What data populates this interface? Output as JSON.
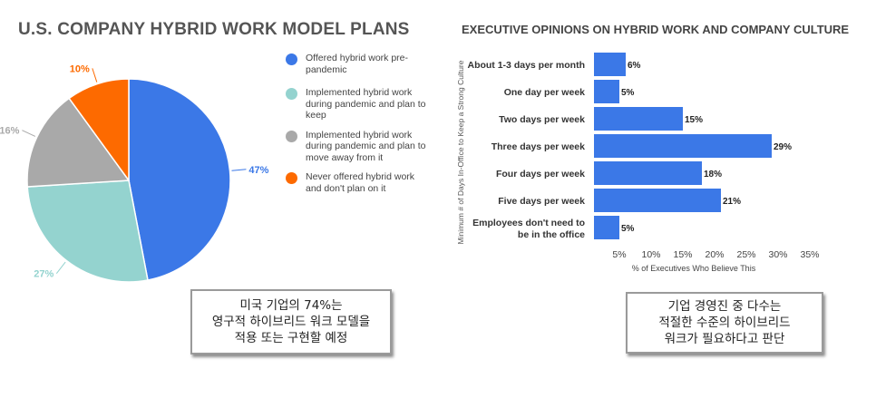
{
  "pie_title": "U.S. COMPANY HYBRID WORK MODEL PLANS",
  "bar_title": "EXECUTIVE OPINIONS ON HYBRID WORK AND COMPANY CULTURE",
  "caption_left": "미국 기업의 74%는\n영구적 하이브리드 워크 모델을\n적용 또는 구현할 예정",
  "caption_right": "기업 경영진 중 다수는\n적절한 수준의 하이브리드\n워크가 필요하다고 판단",
  "chart_data": [
    {
      "type": "pie",
      "title": "U.S. COMPANY HYBRID WORK MODEL PLANS",
      "slices": [
        {
          "label": "Offered hybrid work pre-pandemic",
          "value": 47,
          "display": "47%",
          "color": "#3b78e7"
        },
        {
          "label": "Implemented hybrid work during pandemic and plan to keep",
          "value": 27,
          "display": "27%",
          "color": "#94d3cf"
        },
        {
          "label": "Implemented hybrid work during pandemic and plan to move away from it",
          "value": 16,
          "display": "16%",
          "color": "#a9a9a9"
        },
        {
          "label": "Never offered hybrid work and don't plan on it",
          "value": 10,
          "display": "10%",
          "color": "#fd6a00"
        }
      ],
      "legend_position": "right"
    },
    {
      "type": "bar",
      "orientation": "horizontal",
      "title": "EXECUTIVE OPINIONS ON HYBRID WORK AND COMPANY CULTURE",
      "categories": [
        "About 1-3 days per month",
        "One day per week",
        "Two days per week",
        "Three days per week",
        "Four days per week",
        "Five days per week",
        "Employees don't need to be in the office"
      ],
      "category_lines": [
        [
          "About 1-3 days per month"
        ],
        [
          "One day per week"
        ],
        [
          "Two days per week"
        ],
        [
          "Three days per week"
        ],
        [
          "Four days per week"
        ],
        [
          "Five days per week"
        ],
        [
          "Employees don't need to",
          "be in the office"
        ]
      ],
      "values": [
        6,
        5,
        15,
        29,
        18,
        21,
        5
      ],
      "value_labels": [
        "6%",
        "5%",
        "15%",
        "29%",
        "18%",
        "21%",
        "5%"
      ],
      "xlabel": "% of Executives Who Believe This",
      "ylabel": "Minimum # of Days In-Office to Keep a Strong Culture",
      "xticks": [
        "5%",
        "10%",
        "15%",
        "20%",
        "25%",
        "30%",
        "35%"
      ],
      "xtick_values": [
        5,
        10,
        15,
        20,
        25,
        30,
        35
      ],
      "xlim": [
        1,
        35
      ],
      "grid": false,
      "color": "#3b78e7"
    }
  ]
}
